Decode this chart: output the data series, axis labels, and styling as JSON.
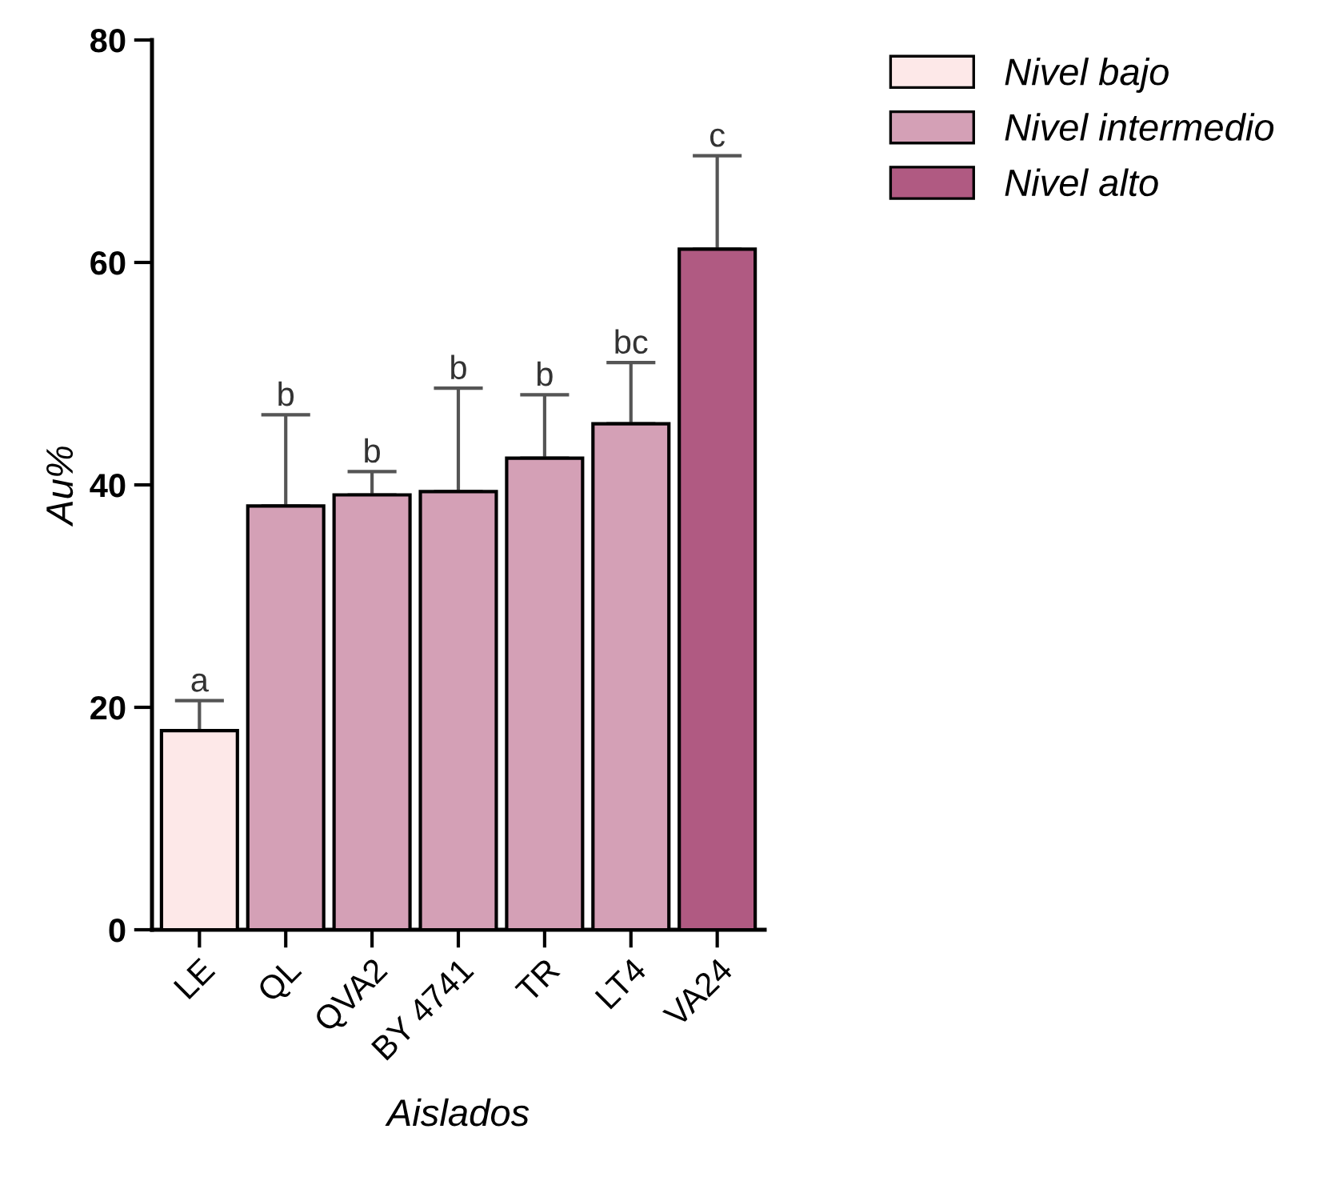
{
  "chart_data": {
    "type": "bar",
    "xlabel": "Aislados",
    "ylabel": "Au%",
    "categories": [
      "LE",
      "QL",
      "QVA2",
      "BY 4741",
      "TR",
      "LT4",
      "VA24"
    ],
    "series": [
      {
        "name": "Nivel bajo",
        "color": "#fde8e8",
        "values": [
          17.9,
          null,
          null,
          null,
          null,
          null,
          null
        ],
        "errors": [
          [
            17.9,
            20.6
          ],
          null,
          null,
          null,
          null,
          null,
          null
        ]
      },
      {
        "name": "Nivel intermedio",
        "color": "#d4a0b6",
        "values": [
          null,
          38.1,
          39.1,
          39.4,
          42.4,
          45.5,
          null
        ],
        "errors": [
          null,
          [
            38.1,
            46.3
          ],
          [
            39.1,
            41.2
          ],
          [
            39.4,
            48.7
          ],
          [
            42.4,
            48.1
          ],
          [
            45.5,
            51.0
          ],
          null
        ]
      },
      {
        "name": "Nivel alto",
        "color": "#b05a82",
        "values": [
          null,
          null,
          null,
          null,
          null,
          null,
          61.2
        ],
        "errors": [
          null,
          null,
          null,
          null,
          null,
          null,
          [
            61.2,
            69.6
          ]
        ]
      }
    ],
    "ylim": [
      0,
      80
    ],
    "yticks": [
      0,
      20,
      40,
      60,
      80
    ],
    "grid": false,
    "legend": "top right",
    "annotations": [
      "a",
      "b",
      "b",
      "b",
      "b",
      "bc",
      "c"
    ]
  }
}
